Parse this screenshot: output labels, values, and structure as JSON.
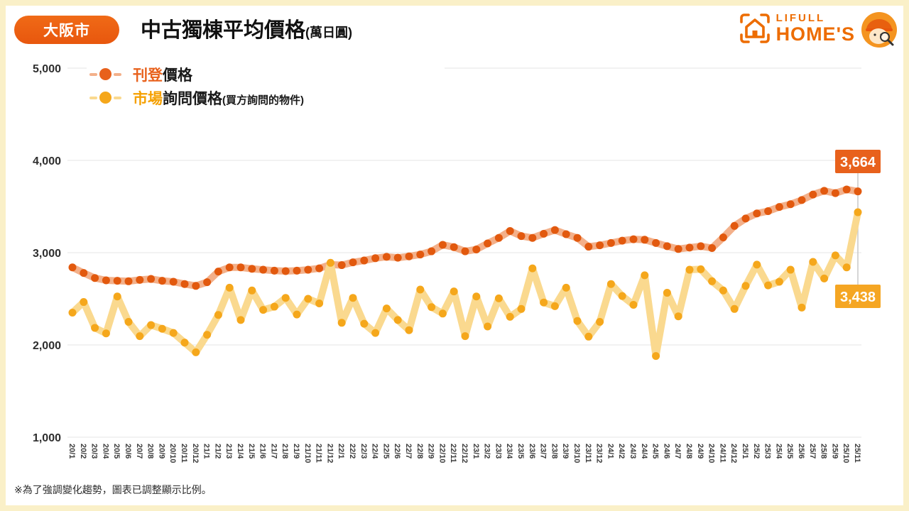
{
  "page": {
    "badge": "大阪市",
    "title": "中古獨棟平均價格",
    "title_unit": "(萬日圓)",
    "footnote": "※為了強調變化趨勢，圖表已調整顯示比例。",
    "logo": {
      "brand_top": "LIFULL",
      "brand_bottom": "HOME'S"
    }
  },
  "legend": [
    {
      "colored": "刊登",
      "rest": "價格",
      "suffix": "",
      "color": "#e8611c",
      "band": "#f3b08a"
    },
    {
      "colored": "市場",
      "rest": "詢問價格",
      "suffix": "(買方詢問的物件)",
      "color": "#f5a71b",
      "band": "#fad98f"
    }
  ],
  "chart_data": {
    "type": "line",
    "title": "中古獨棟平均價格(萬日圓)",
    "region": "大阪市",
    "grid": true,
    "legend_position": "top-left",
    "xlabel_rotation": 90,
    "ylim": [
      1000,
      5000
    ],
    "y_ticks": [
      {
        "label": "5,000",
        "value": 5000
      },
      {
        "label": "4,000",
        "value": 4000
      },
      {
        "label": "3,000",
        "value": 3000
      },
      {
        "label": "2,000",
        "value": 2000
      },
      {
        "label": "1,000",
        "value": 1000
      }
    ],
    "x": [
      "20/1",
      "20/2",
      "20/3",
      "20/4",
      "20/5",
      "20/6",
      "20/7",
      "20/8",
      "20/9",
      "20/10",
      "20/11",
      "20/12",
      "21/1",
      "21/2",
      "21/3",
      "21/4",
      "21/5",
      "21/6",
      "21/7",
      "21/8",
      "21/9",
      "21/10",
      "21/11",
      "21/12",
      "22/1",
      "22/2",
      "22/3",
      "22/4",
      "22/5",
      "22/6",
      "22/7",
      "22/8",
      "22/9",
      "22/10",
      "22/11",
      "22/12",
      "23/1",
      "23/2",
      "23/3",
      "23/4",
      "23/5",
      "23/6",
      "23/7",
      "23/8",
      "23/9",
      "23/10",
      "23/11",
      "23/12",
      "24/1",
      "24/2",
      "24/3",
      "24/4",
      "24/5",
      "24/6",
      "24/7",
      "24/8",
      "24/9",
      "24/10",
      "24/11",
      "24/12",
      "25/1",
      "25/2",
      "25/3",
      "25/4",
      "25/5",
      "25/6",
      "25/7",
      "25/8",
      "25/9",
      "25/10",
      "25/11"
    ],
    "series": [
      {
        "name": "刊登價格",
        "color": "#e2590e",
        "band": "#f3b08a",
        "end_label": "3,664",
        "end_label_color": "#e8611c",
        "values": [
          2840,
          2780,
          2725,
          2700,
          2695,
          2690,
          2705,
          2715,
          2695,
          2685,
          2660,
          2640,
          2680,
          2795,
          2840,
          2840,
          2825,
          2815,
          2805,
          2800,
          2805,
          2815,
          2830,
          2870,
          2865,
          2895,
          2915,
          2940,
          2955,
          2945,
          2960,
          2980,
          3015,
          3085,
          3060,
          3015,
          3035,
          3100,
          3160,
          3235,
          3180,
          3160,
          3205,
          3245,
          3200,
          3160,
          3065,
          3080,
          3105,
          3130,
          3145,
          3140,
          3105,
          3070,
          3040,
          3055,
          3070,
          3050,
          3165,
          3290,
          3370,
          3425,
          3450,
          3495,
          3525,
          3570,
          3630,
          3670,
          3645,
          3685,
          3664
        ]
      },
      {
        "name": "市場詢問價格(買方詢問的物件)",
        "color": "#f5a71b",
        "band": "#fad98f",
        "end_label": "3,438",
        "end_label_color": "#f5a623",
        "values": [
          2350,
          2465,
          2185,
          2125,
          2525,
          2250,
          2095,
          2215,
          2175,
          2130,
          2025,
          1920,
          2110,
          2325,
          2620,
          2270,
          2590,
          2380,
          2415,
          2510,
          2330,
          2500,
          2450,
          2890,
          2240,
          2510,
          2230,
          2130,
          2395,
          2270,
          2160,
          2600,
          2410,
          2340,
          2580,
          2095,
          2525,
          2200,
          2505,
          2305,
          2390,
          2830,
          2460,
          2420,
          2620,
          2260,
          2090,
          2250,
          2660,
          2530,
          2435,
          2755,
          1880,
          2565,
          2310,
          2815,
          2820,
          2690,
          2590,
          2390,
          2640,
          2870,
          2645,
          2685,
          2815,
          2405,
          2900,
          2720,
          2970,
          2840,
          3438
        ]
      }
    ]
  }
}
